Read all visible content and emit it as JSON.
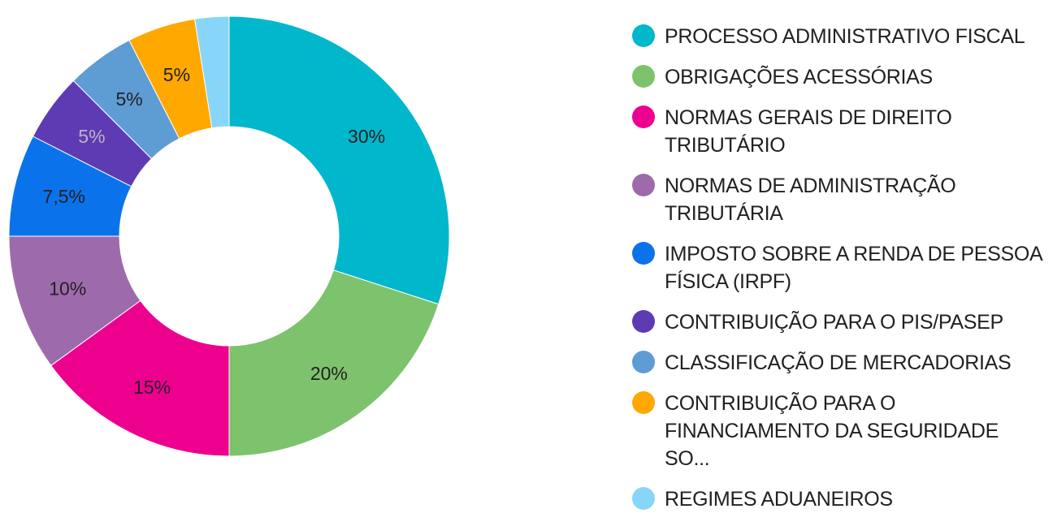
{
  "chart_data": {
    "type": "pie",
    "variant": "donut",
    "legend_position": "right",
    "slices": [
      {
        "label": "PROCESSO ADMINISTRATIVO FISCAL",
        "value": 30,
        "display": "30%",
        "color": "#00B7CC",
        "label_color": "#212121"
      },
      {
        "label": "OBRIGAÇÕES ACESSÓRIAS",
        "value": 20,
        "display": "20%",
        "color": "#7DC36D",
        "label_color": "#212121"
      },
      {
        "label": "NORMAS GERAIS DE DIREITO TRIBUTÁRIO",
        "value": 15,
        "display": "15%",
        "color": "#EE008F",
        "label_color": "#212121"
      },
      {
        "label": "NORMAS DE ADMINISTRAÇÃO TRIBUTÁRIA",
        "value": 10,
        "display": "10%",
        "color": "#9D6BAB",
        "label_color": "#212121"
      },
      {
        "label": "IMPOSTO SOBRE A RENDA DE PESSOA FÍSICA (IRPF)",
        "value": 7.5,
        "display": "7,5%",
        "color": "#0A73EC",
        "label_color": "#212121"
      },
      {
        "label": "CONTRIBUIÇÃO PARA O PIS/PASEP",
        "value": 5,
        "display": "5%",
        "color": "#5E3BB3",
        "label_color": "#B9B3C9"
      },
      {
        "label": "CLASSIFICAÇÃO DE MERCADORIAS",
        "value": 5,
        "display": "5%",
        "color": "#5E9CD4",
        "label_color": "#212121"
      },
      {
        "label": "CONTRIBUIÇÃO PARA O FINANCIAMENTO DA SEGURIDADE SO...",
        "value": 5,
        "display": "5%",
        "color": "#FEA800",
        "label_color": "#212121"
      },
      {
        "label": "REGIMES ADUANEIROS",
        "value": 2.5,
        "display": "",
        "color": "#88D5FA",
        "label_color": "#212121"
      }
    ]
  }
}
